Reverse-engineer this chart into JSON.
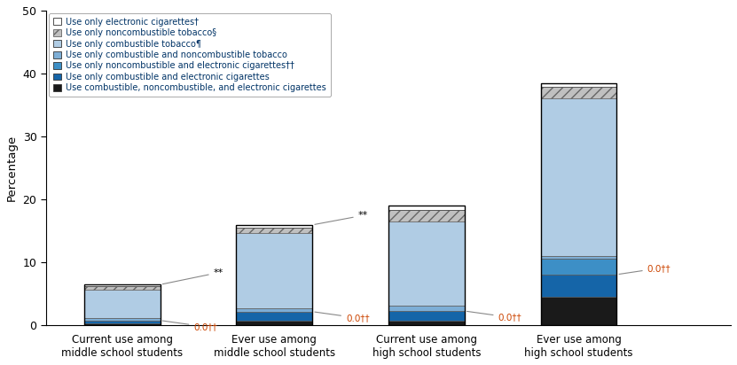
{
  "categories": [
    "Current use among\nmiddle school students",
    "Ever use among\nmiddle school students",
    "Current use among\nhigh school students",
    "Ever use among\nhigh school students"
  ],
  "seg_values": [
    [
      0.3,
      0.6,
      0.7,
      4.5
    ],
    [
      0.4,
      1.5,
      1.5,
      3.5
    ],
    [
      0.0,
      0.0,
      0.0,
      2.5
    ],
    [
      0.4,
      0.5,
      0.8,
      0.5
    ],
    [
      4.5,
      12.0,
      13.5,
      25.0
    ],
    [
      0.5,
      0.9,
      1.8,
      1.8
    ],
    [
      0.3,
      0.4,
      0.7,
      0.6
    ]
  ],
  "colors": [
    "#1a1a1a",
    "#1565a8",
    "#3d8fc6",
    "#7daed6",
    "#b0cce4",
    "hatch_gray",
    "white"
  ],
  "hatch_facecolor": "#c0c0c0",
  "hatch_edgecolor": "#666666",
  "hatch_pattern": "///",
  "legend_items": [
    {
      "label": "Use only electronic cigarettes†",
      "facecolor": "white",
      "edgecolor": "#333333",
      "hatch": ""
    },
    {
      "label": "Use only noncombustible tobacco§",
      "facecolor": "#c0c0c0",
      "edgecolor": "#666666",
      "hatch": "///"
    },
    {
      "label": "Use only combustible tobacco¶",
      "facecolor": "#b0cce4",
      "edgecolor": "#333333",
      "hatch": ""
    },
    {
      "label": "Use only combustible and noncombustible tobacco",
      "facecolor": "#7daed6",
      "edgecolor": "#333333",
      "hatch": ""
    },
    {
      "label": "Use only noncombustible and electronic cigarettes††",
      "facecolor": "#3d8fc6",
      "edgecolor": "#333333",
      "hatch": ""
    },
    {
      "label": "Use only combustible and electronic cigarettes",
      "facecolor": "#1565a8",
      "edgecolor": "#333333",
      "hatch": ""
    },
    {
      "label": "Use combustible, noncombustible, and electronic cigarettes",
      "facecolor": "#1a1a1a",
      "edgecolor": "#333333",
      "hatch": ""
    }
  ],
  "ylim": [
    0,
    50
  ],
  "yticks": [
    0,
    10,
    20,
    30,
    40,
    50
  ],
  "ylabel": "Percentage",
  "bar_width": 0.5,
  "bar_positions": [
    0.5,
    1.5,
    2.5,
    3.5
  ],
  "xlim": [
    0,
    4.5
  ],
  "legend_text_color": "#003366",
  "ann_orange": "#cc4400",
  "ann_gray": "#888888"
}
